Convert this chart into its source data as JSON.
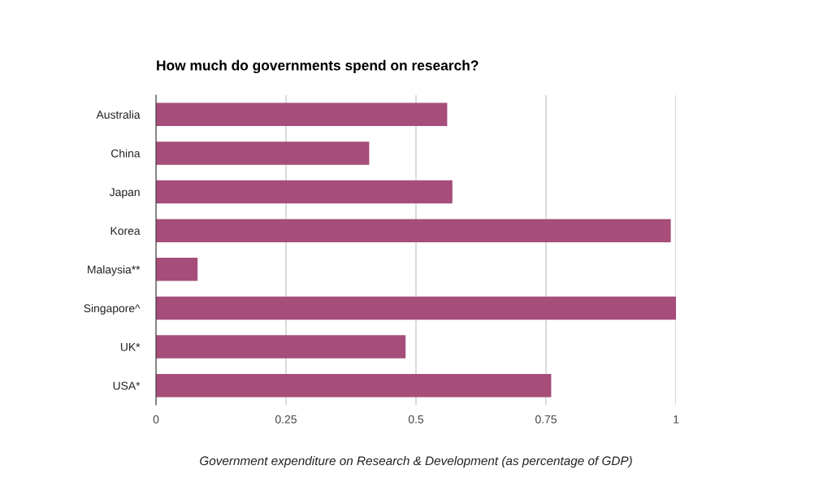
{
  "chart_data": {
    "type": "bar",
    "orientation": "horizontal",
    "title": "How much do governments spend on research?",
    "xlabel": "Government expenditure on Research & Development (as percentage of GDP)",
    "categories": [
      "Australia",
      "China",
      "Japan",
      "Korea",
      "Malaysia**",
      "Singapore^",
      "UK*",
      "USA*"
    ],
    "values": [
      0.56,
      0.41,
      0.57,
      0.99,
      0.08,
      1.0,
      0.48,
      0.76
    ],
    "color": "#a64d79",
    "xlim": [
      0,
      1
    ],
    "xticks": [
      0,
      0.25,
      0.5,
      0.75,
      1
    ],
    "grid": "x"
  }
}
